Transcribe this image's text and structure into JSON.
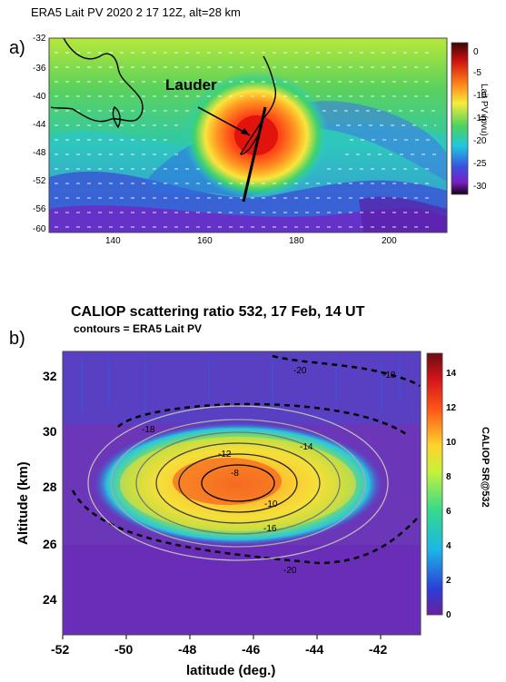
{
  "panel_a": {
    "letter": "a)",
    "title": "ERA5 Lait PV 2020  2  17 12Z, alt=28 km",
    "annotation": "Lauder",
    "colorbar_label": "Lait PV (pvu)",
    "colors": {
      "core": "#e61f10",
      "ring": "#f7e93a",
      "background": "#49d16a",
      "low": "#7b27c7"
    }
  },
  "panel_b": {
    "letter": "b)",
    "title": "CALIOP scattering ratio 532, 17 Feb, 14 UT",
    "subtitle": "contours = ERA5 Lait PV",
    "colorbar_label": "CALIOP SR@532",
    "xlabel": "latitude (deg.)",
    "ylabel": "Altitude (km)"
  },
  "chart_data": [
    {
      "type": "heatmap",
      "title": "ERA5 Lait PV 2020  2  17 12Z, alt=28 km",
      "x_ticks": [
        "140",
        "160",
        "180",
        "200"
      ],
      "y_ticks": [
        "-32",
        "-36",
        "-40",
        "-44",
        "-48",
        "-52",
        "-56",
        "-60"
      ],
      "xlim": [
        130,
        212
      ],
      "ylim": [
        -60,
        -32
      ],
      "colorbar": {
        "label": "Lait PV (pvu)",
        "ticks": [
          "0",
          "-5",
          "-10",
          "-15",
          "-20",
          "-25",
          "-30"
        ],
        "range": [
          -30,
          0
        ]
      },
      "vortex": {
        "center_lon": 170,
        "center_lat": -46,
        "pv_core": -10,
        "label": "Lauder"
      },
      "lauder": {
        "lon": 169.7,
        "lat": -45.0
      },
      "caliop_track": [
        [
          167,
          -53
        ],
        [
          174,
          -40
        ]
      ]
    },
    {
      "type": "heatmap",
      "title": "CALIOP scattering ratio 532, 17 Feb, 14 UT",
      "subtitle": "contours = ERA5 Lait PV",
      "x_ticks": [
        "-52",
        "-50",
        "-48",
        "-46",
        "-44",
        "-42"
      ],
      "y_ticks": [
        "24",
        "26",
        "28",
        "30",
        "32"
      ],
      "xlim": [
        -52.3,
        -41.0
      ],
      "ylim": [
        23.0,
        33.0
      ],
      "xlabel": "latitude (deg.)",
      "ylabel": "Altitude (km)",
      "colorbar": {
        "label": "CALIOP SR@532",
        "ticks": [
          "0",
          "2",
          "4",
          "6",
          "8",
          "10",
          "12",
          "14"
        ],
        "range": [
          0,
          15
        ]
      },
      "contour_labels": [
        {
          "text": "-8",
          "lat": -46.0,
          "alt": 28.6
        },
        {
          "text": "-10",
          "lat": -45.0,
          "alt": 26.5
        },
        {
          "text": "-12",
          "lat": -46.7,
          "alt": 29.1
        },
        {
          "text": "-14",
          "lat": -44.9,
          "alt": 29.6
        },
        {
          "text": "-16",
          "lat": -45.0,
          "alt": 25.6
        },
        {
          "text": "-18",
          "lat": -49.7,
          "alt": 30.1
        },
        {
          "text": "-20",
          "lat": -44.6,
          "alt": 25.1
        },
        {
          "text": "-20",
          "lat": -44.5,
          "alt": 32.6
        },
        {
          "text": "-18",
          "lat": -42.4,
          "alt": 32.5
        }
      ]
    }
  ]
}
